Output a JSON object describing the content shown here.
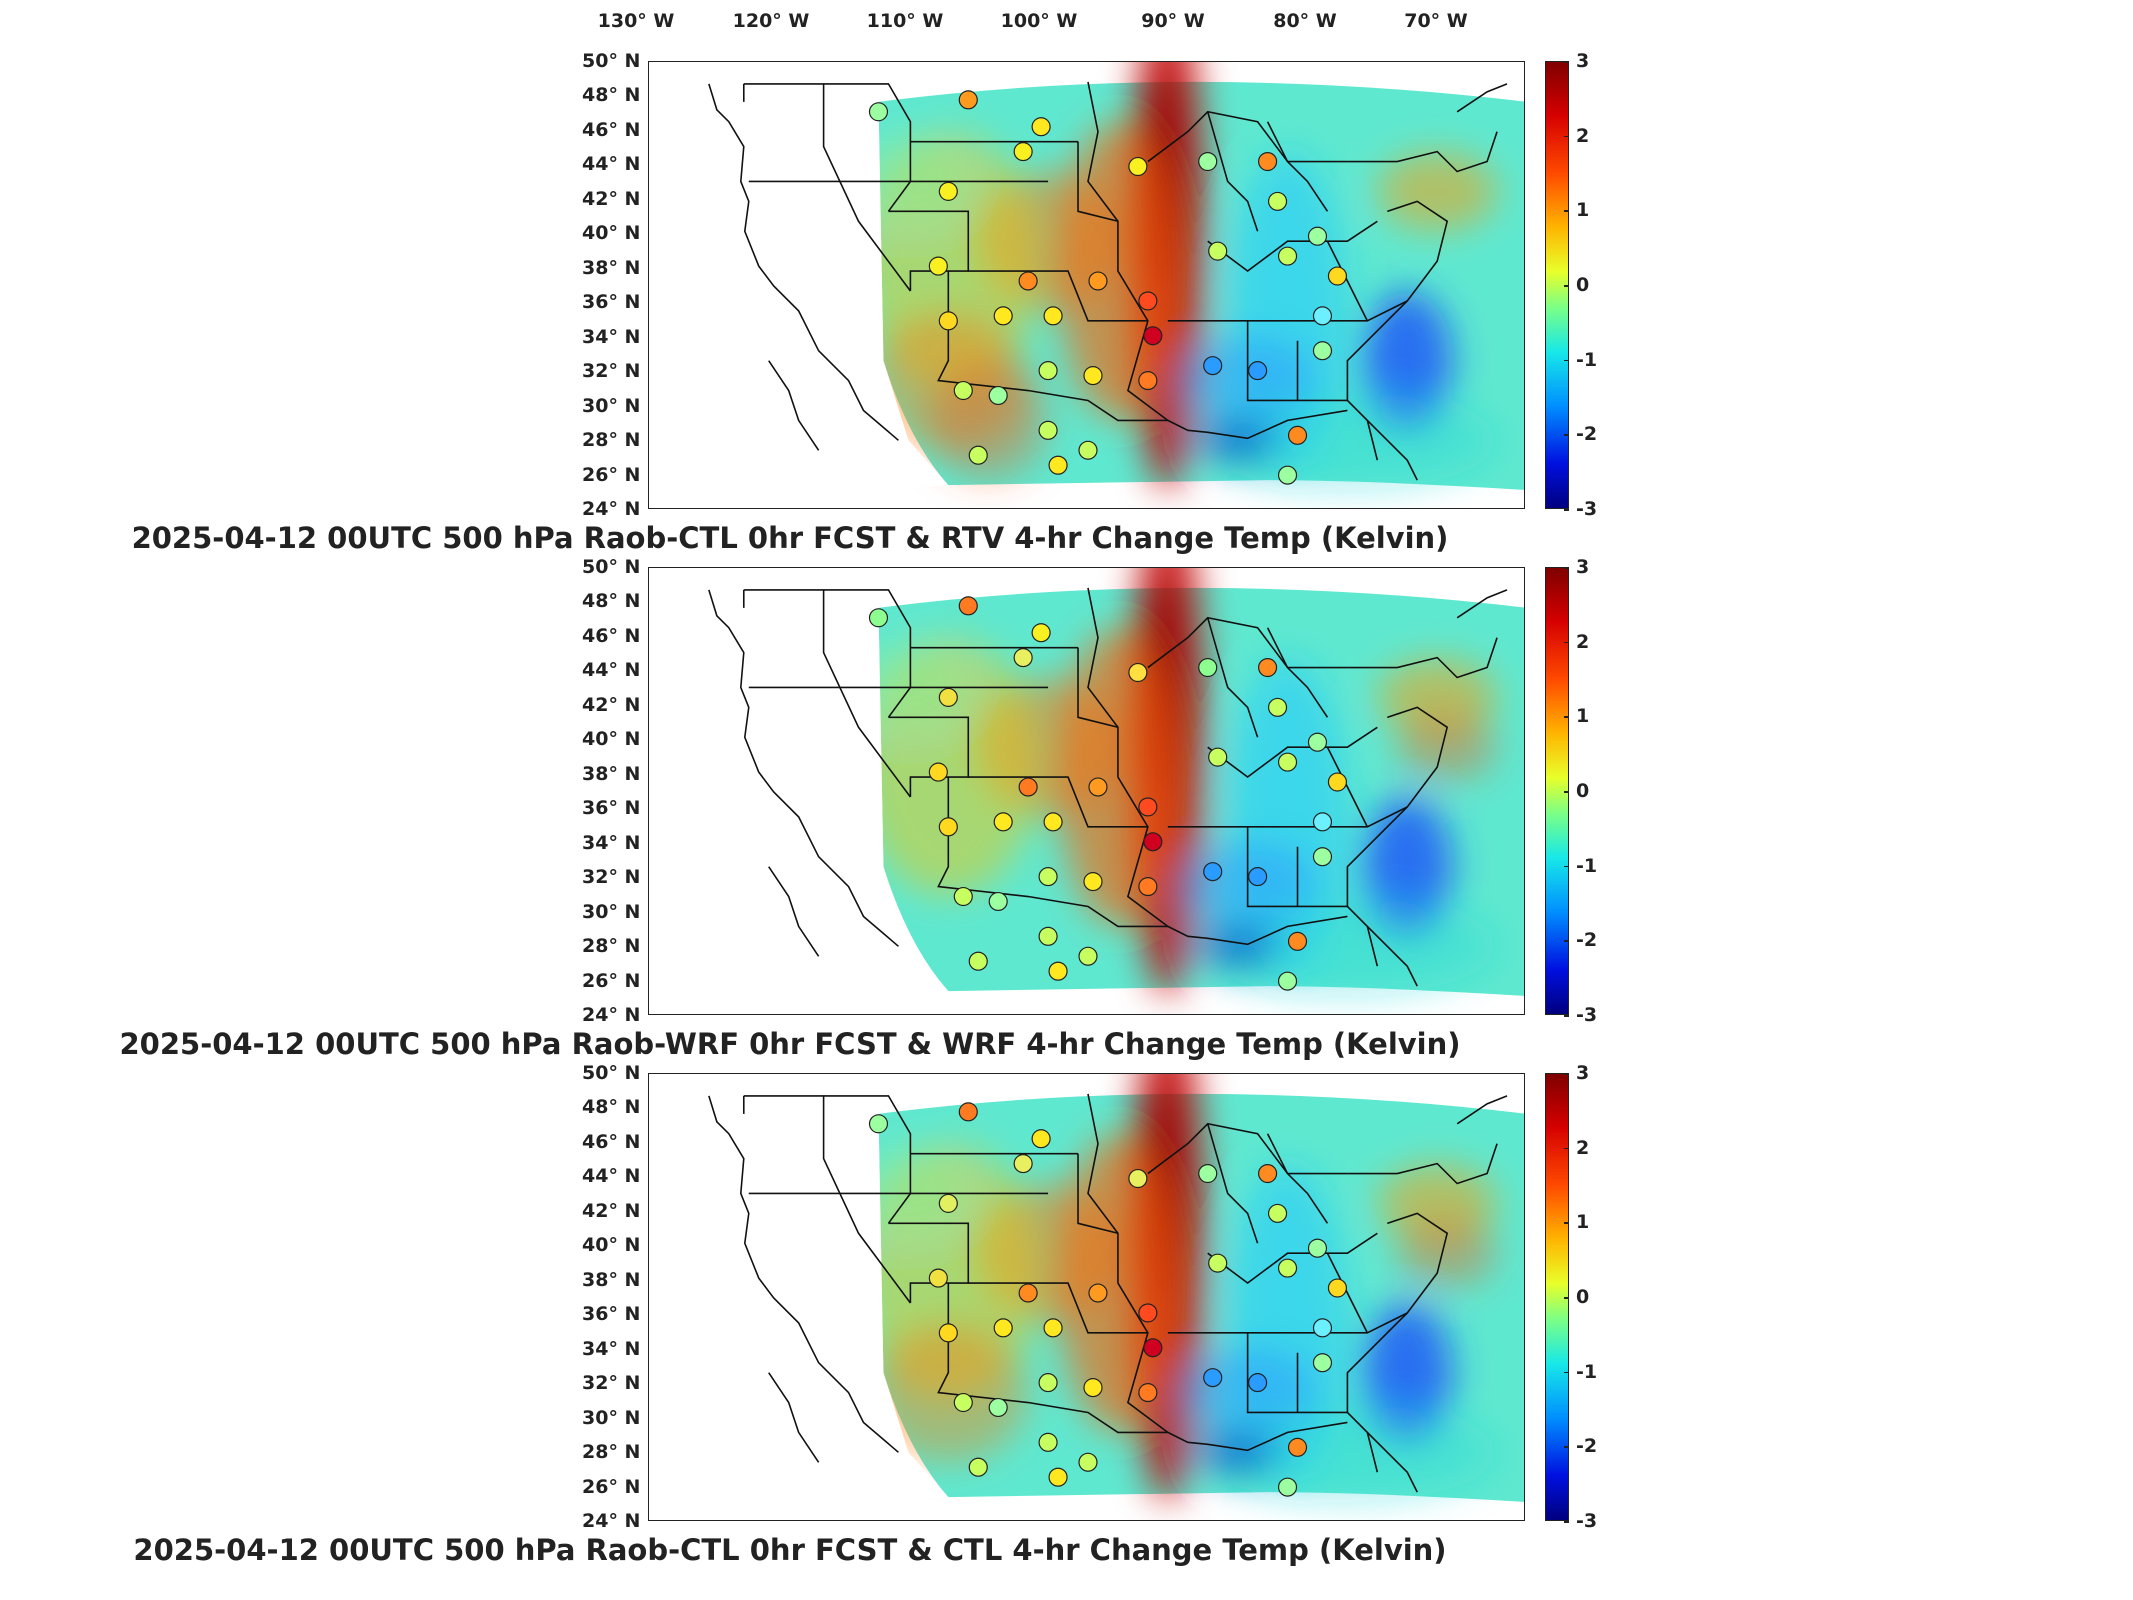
{
  "longitude_labels": [
    "130° W",
    "120° W",
    "110° W",
    "100° W",
    "90° W",
    "80° W",
    "70° W"
  ],
  "latitude_labels": [
    "50° N",
    "48° N",
    "46° N",
    "44° N",
    "42° N",
    "40° N",
    "38° N",
    "36° N",
    "34° N",
    "32° N",
    "30° N",
    "28° N",
    "26° N",
    "24° N"
  ],
  "colorbar": {
    "ticks": [
      "3",
      "2",
      "1",
      "0",
      "-1",
      "-2",
      "-3"
    ],
    "colormap": "jet",
    "range": [
      -3,
      3
    ],
    "colors": {
      "max": "#7f0000",
      "red": "#ff2a00",
      "yellow": "#ffe000",
      "green": "#7cff86",
      "cyan": "#17e8e8",
      "blue": "#0010e0",
      "min": "#00007f"
    }
  },
  "panels": [
    {
      "caption": "2025-04-12 00UTC 500 hPa Raob-CTL 0hr FCST & RTV 4-hr Change Temp (Kelvin)"
    },
    {
      "caption": "2025-04-12 00UTC 500 hPa Raob-WRF 0hr FCST & WRF 4-hr Change Temp (Kelvin)"
    },
    {
      "caption": "2025-04-12 00UTC 500 hPa Raob-CTL 0hr FCST & CTL 4-hr Change Temp (Kelvin)"
    }
  ]
}
